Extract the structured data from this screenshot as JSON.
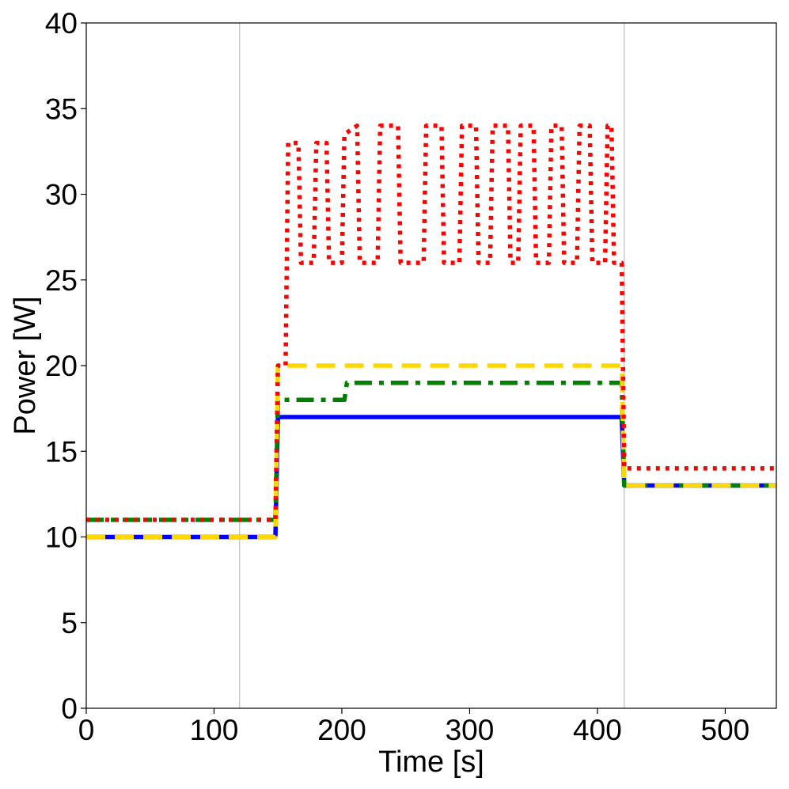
{
  "chart_data": {
    "type": "line",
    "xlabel": "Time [s]",
    "ylabel": "Power [W]",
    "xlim": [
      0,
      540
    ],
    "ylim": [
      0,
      40
    ],
    "xticks": [
      0,
      100,
      200,
      300,
      400,
      500
    ],
    "yticks": [
      0,
      5,
      10,
      15,
      20,
      25,
      30,
      35,
      40
    ],
    "grid": false,
    "vlines": [
      120,
      421
    ],
    "series": [
      {
        "color": "#0000ff",
        "style": "solid",
        "points": [
          [
            0,
            10
          ],
          [
            148,
            10
          ],
          [
            150,
            17
          ],
          [
            419,
            17
          ],
          [
            421,
            13
          ],
          [
            540,
            13
          ]
        ]
      },
      {
        "color": "#008000",
        "style": "dashdot",
        "points": [
          [
            0,
            11
          ],
          [
            148,
            11
          ],
          [
            150,
            18
          ],
          [
            202,
            18
          ],
          [
            204,
            19
          ],
          [
            419,
            19
          ],
          [
            421,
            13
          ],
          [
            540,
            13
          ]
        ]
      },
      {
        "color": "#ffd700",
        "style": "dashed",
        "points": [
          [
            0,
            10
          ],
          [
            148,
            10
          ],
          [
            150,
            20
          ],
          [
            419,
            20
          ],
          [
            421,
            13
          ],
          [
            540,
            13
          ]
        ]
      },
      {
        "color": "#ff0000",
        "style": "dotted",
        "points": [
          [
            0,
            11
          ],
          [
            148,
            11
          ],
          [
            150,
            20
          ],
          [
            156,
            20
          ],
          [
            158,
            33
          ],
          [
            166,
            33
          ],
          [
            168,
            26
          ],
          [
            178,
            26
          ],
          [
            180,
            33
          ],
          [
            188,
            33
          ],
          [
            190,
            26
          ],
          [
            200,
            26
          ],
          [
            202,
            33.5
          ],
          [
            212,
            34
          ],
          [
            214,
            26
          ],
          [
            228,
            26
          ],
          [
            230,
            34
          ],
          [
            244,
            34
          ],
          [
            246,
            26
          ],
          [
            264,
            26
          ],
          [
            266,
            34
          ],
          [
            278,
            34
          ],
          [
            280,
            26
          ],
          [
            292,
            26
          ],
          [
            294,
            34
          ],
          [
            305,
            34
          ],
          [
            307,
            26
          ],
          [
            316,
            26
          ],
          [
            318,
            34
          ],
          [
            330,
            34
          ],
          [
            332,
            26
          ],
          [
            338,
            26
          ],
          [
            340,
            34
          ],
          [
            350,
            34
          ],
          [
            352,
            26
          ],
          [
            362,
            26
          ],
          [
            364,
            34
          ],
          [
            372,
            34
          ],
          [
            374,
            26
          ],
          [
            384,
            26
          ],
          [
            386,
            34
          ],
          [
            394,
            34
          ],
          [
            396,
            26
          ],
          [
            406,
            26
          ],
          [
            408,
            34
          ],
          [
            411,
            34
          ],
          [
            413,
            26
          ],
          [
            419,
            26
          ],
          [
            421,
            14
          ],
          [
            540,
            14
          ]
        ]
      }
    ]
  }
}
